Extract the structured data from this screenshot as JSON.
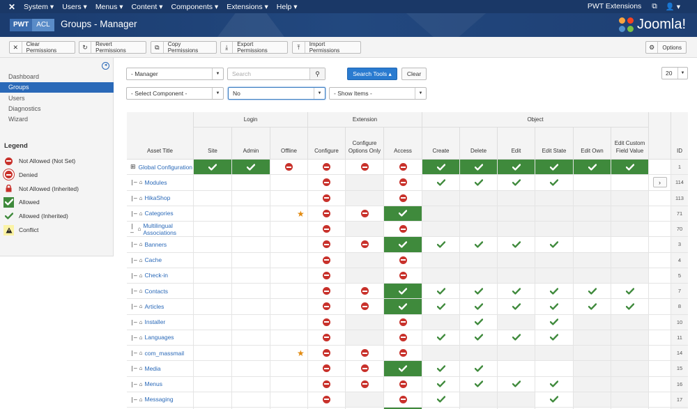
{
  "topnav": {
    "menus": [
      "System",
      "Users",
      "Menus",
      "Content",
      "Components",
      "Extensions",
      "Help"
    ],
    "site_link": "PWT Extensions",
    "user": "▾"
  },
  "header": {
    "logo_a": "PWT",
    "logo_b": "ACL",
    "title": "Groups - Manager",
    "brand": "Joomla!"
  },
  "toolbar": {
    "clear": "Clear Permissions",
    "revert": "Revert Permissions",
    "copy": "Copy Permissions",
    "export": "Export Permissions",
    "import": "Import Permissions",
    "options": "Options"
  },
  "sidebar": {
    "items": [
      "Dashboard",
      "Groups",
      "Users",
      "Diagnostics",
      "Wizard"
    ],
    "active": "Groups",
    "legend_title": "Legend",
    "legend": [
      {
        "label": "Not Allowed (Not Set)",
        "icon": "not-set-icon"
      },
      {
        "label": "Denied",
        "icon": "denied-icon"
      },
      {
        "label": "Not Allowed (Inherited)",
        "icon": "lock-icon"
      },
      {
        "label": "Allowed",
        "icon": "allowed-icon"
      },
      {
        "label": "Allowed (Inherited)",
        "icon": "inherited-check-icon"
      },
      {
        "label": "Conflict",
        "icon": "conflict-icon"
      }
    ]
  },
  "filters": {
    "group_value": "- Manager",
    "search_placeholder": "Search",
    "search_tools": "Search Tools ▴",
    "clear": "Clear",
    "limit": "20",
    "component_value": "- Select Component -",
    "no_value": "No",
    "show_items_value": "- Show Items -"
  },
  "table": {
    "groups": {
      "login": "Login",
      "extension": "Extension",
      "object": "Object"
    },
    "columns": [
      "Site",
      "Admin",
      "Offline",
      "Configure",
      "Configure Options Only",
      "Access",
      "Create",
      "Delete",
      "Edit",
      "Edit State",
      "Edit Own",
      "Edit Custom Field Value"
    ],
    "asset_title": "Asset Title",
    "id_header": "ID",
    "rows": [
      {
        "title": "Global Configuration",
        "root": true,
        "id": "1",
        "cells": [
          "AG",
          "AG",
          "D",
          "D",
          "D",
          "D",
          "AG",
          "AG",
          "AG",
          "AG",
          "AG",
          "AG"
        ],
        "star": false
      },
      {
        "title": "Modules",
        "id": "114",
        "cells": [
          "",
          "",
          "",
          "D",
          "S",
          "D",
          "I",
          "I",
          "I",
          "I",
          "",
          ""
        ],
        "star": false,
        "arrow": true
      },
      {
        "title": "HikaShop",
        "id": "113",
        "cells": [
          "",
          "",
          "",
          "D",
          "S",
          "D",
          "S",
          "S",
          "S",
          "S",
          "S",
          "S"
        ],
        "star": false
      },
      {
        "title": "Categories",
        "id": "71",
        "cells": [
          "",
          "",
          "",
          "D",
          "D",
          "AG",
          "S",
          "S",
          "S",
          "S",
          "S",
          "S"
        ],
        "star": true
      },
      {
        "title": "Multilingual Associations",
        "id": "70",
        "cells": [
          "",
          "",
          "",
          "D",
          "S",
          "D",
          "S",
          "S",
          "S",
          "S",
          "S",
          "S"
        ],
        "star": false
      },
      {
        "title": "Banners",
        "id": "3",
        "cells": [
          "",
          "",
          "",
          "D",
          "D",
          "AG",
          "I",
          "I",
          "I",
          "I",
          "",
          ""
        ],
        "star": false
      },
      {
        "title": "Cache",
        "id": "4",
        "cells": [
          "",
          "",
          "",
          "D",
          "S",
          "D",
          "S",
          "S",
          "S",
          "S",
          "S",
          "S"
        ],
        "star": false
      },
      {
        "title": "Check-in",
        "id": "5",
        "cells": [
          "",
          "",
          "",
          "D",
          "S",
          "D",
          "S",
          "S",
          "S",
          "S",
          "S",
          "S"
        ],
        "star": false
      },
      {
        "title": "Contacts",
        "id": "7",
        "cells": [
          "",
          "",
          "",
          "D",
          "D",
          "AG",
          "I",
          "I",
          "I",
          "I",
          "I",
          "I"
        ],
        "star": false
      },
      {
        "title": "Articles",
        "id": "8",
        "cells": [
          "",
          "",
          "",
          "D",
          "D",
          "AG",
          "I",
          "I",
          "I",
          "I",
          "I",
          "I"
        ],
        "star": false
      },
      {
        "title": "Installer",
        "id": "10",
        "cells": [
          "",
          "",
          "",
          "D",
          "S",
          "D",
          "S",
          "I",
          "S",
          "I",
          "S",
          "S"
        ],
        "star": false
      },
      {
        "title": "Languages",
        "id": "11",
        "cells": [
          "",
          "",
          "",
          "D",
          "S",
          "D",
          "I",
          "I",
          "I",
          "I",
          "S",
          "S"
        ],
        "star": false
      },
      {
        "title": "com_massmail",
        "id": "14",
        "cells": [
          "",
          "",
          "",
          "D",
          "D",
          "D",
          "S",
          "S",
          "S",
          "S",
          "S",
          "S"
        ],
        "star": true
      },
      {
        "title": "Media",
        "id": "15",
        "cells": [
          "",
          "",
          "",
          "D",
          "D",
          "AG",
          "I",
          "I",
          "",
          "",
          "S",
          "S"
        ],
        "star": false
      },
      {
        "title": "Menus",
        "id": "16",
        "cells": [
          "",
          "",
          "",
          "D",
          "D",
          "D",
          "I",
          "I",
          "I",
          "I",
          "S",
          "S"
        ],
        "star": false
      },
      {
        "title": "Messaging",
        "id": "17",
        "cells": [
          "",
          "",
          "",
          "D",
          "S",
          "D",
          "I",
          "S",
          "S",
          "I",
          "S",
          "S"
        ],
        "star": false
      },
      {
        "title": "",
        "id": "",
        "cells": [
          "",
          "",
          "",
          "",
          "",
          "AG",
          "",
          "",
          "",
          "",
          "",
          ""
        ],
        "star": false
      }
    ]
  },
  "colors": {
    "navy": "#1a3867",
    "accent": "#2a69b8",
    "allowed": "#3f8a3c",
    "denied": "#c8312b",
    "star": "#e28a10"
  }
}
